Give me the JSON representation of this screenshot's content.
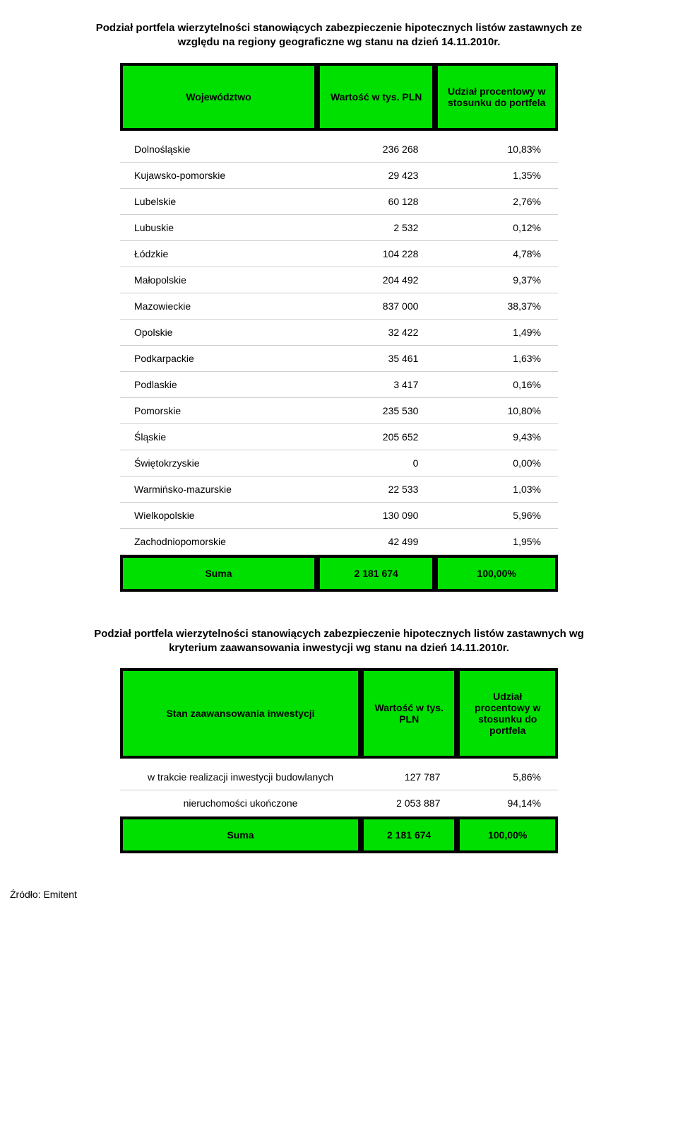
{
  "colors": {
    "accent": "#00e000",
    "border": "#000000",
    "row_border": "#cfcfcf",
    "background": "#ffffff",
    "text": "#000000"
  },
  "typography": {
    "title_fontsize_pt": 11,
    "body_fontsize_pt": 10,
    "font_family": "Verdana"
  },
  "table1": {
    "type": "table",
    "title": "Podział portfela wierzytelności stanowiących zabezpieczenie hipotecznych listów zastawnych ze względu na regiony geograficzne wg stanu na dzień 14.11.2010r.",
    "headers": [
      "Województwo",
      "Wartość w tys. PLN",
      "Udział procentowy w stosunku do portfela"
    ],
    "column_align": [
      "left",
      "right",
      "right"
    ],
    "rows": [
      {
        "label": "Dolnośląskie",
        "value": "236 268",
        "pct": "10,83%"
      },
      {
        "label": "Kujawsko-pomorskie",
        "value": "29 423",
        "pct": "1,35%"
      },
      {
        "label": "Lubelskie",
        "value": "60 128",
        "pct": "2,76%"
      },
      {
        "label": "Lubuskie",
        "value": "2 532",
        "pct": "0,12%"
      },
      {
        "label": "Łódzkie",
        "value": "104 228",
        "pct": "4,78%"
      },
      {
        "label": "Małopolskie",
        "value": "204 492",
        "pct": "9,37%"
      },
      {
        "label": "Mazowieckie",
        "value": "837 000",
        "pct": "38,37%"
      },
      {
        "label": "Opolskie",
        "value": "32 422",
        "pct": "1,49%"
      },
      {
        "label": "Podkarpackie",
        "value": "35 461",
        "pct": "1,63%"
      },
      {
        "label": "Podlaskie",
        "value": "3 417",
        "pct": "0,16%"
      },
      {
        "label": "Pomorskie",
        "value": "235 530",
        "pct": "10,80%"
      },
      {
        "label": "Śląskie",
        "value": "205 652",
        "pct": "9,43%"
      },
      {
        "label": "Świętokrzyskie",
        "value": "0",
        "pct": "0,00%"
      },
      {
        "label": "Warmińsko-mazurskie",
        "value": "22 533",
        "pct": "1,03%"
      },
      {
        "label": "Wielkopolskie",
        "value": "130 090",
        "pct": "5,96%"
      },
      {
        "label": "Zachodniopomorskie",
        "value": "42 499",
        "pct": "1,95%"
      }
    ],
    "footer": {
      "label": "Suma",
      "value": "2 181 674",
      "pct": "100,00%"
    }
  },
  "table2": {
    "type": "table",
    "title": "Podział portfela wierzytelności stanowiących zabezpieczenie hipotecznych listów zastawnych wg kryterium zaawansowania inwestycji wg stanu na dzień 14.11.2010r.",
    "headers": [
      "Stan zaawansowania inwestycji",
      "Wartość w tys. PLN",
      "Udział procentowy w stosunku do portfela"
    ],
    "column_align": [
      "center",
      "right",
      "right"
    ],
    "rows": [
      {
        "label": "w trakcie realizacji inwestycji budowlanych",
        "value": "127 787",
        "pct": "5,86%"
      },
      {
        "label": "nieruchomości ukończone",
        "value": "2 053 887",
        "pct": "94,14%"
      }
    ],
    "footer": {
      "label": "Suma",
      "value": "2 181 674",
      "pct": "100,00%"
    }
  },
  "source_label": "Źródło: Emitent"
}
